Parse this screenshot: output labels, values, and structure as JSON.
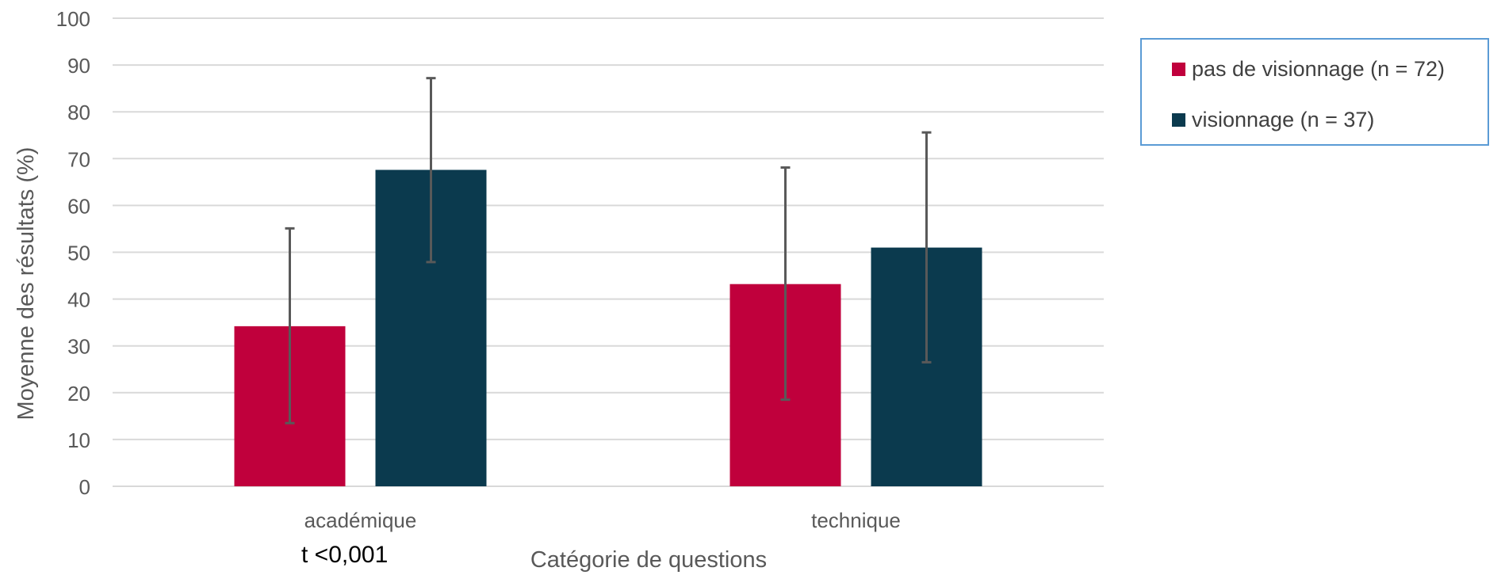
{
  "chart_data": {
    "type": "bar",
    "xlabel": "Catégorie de questions",
    "ylabel": "Moyenne des résultats (%)",
    "ylim": [
      0,
      100
    ],
    "yticks": [
      "0",
      "10",
      "20",
      "30",
      "40",
      "50",
      "60",
      "70",
      "80",
      "90",
      "100"
    ],
    "grid": true,
    "legend_position": "top-right",
    "categories": [
      "académique",
      "technique"
    ],
    "series": [
      {
        "name": "pas de visionnage (n = 72)",
        "color": "#c0003c",
        "values": [
          34.2,
          43.2
        ],
        "error_low": [
          13.5,
          18.5
        ],
        "error_high": [
          55.1,
          68.1
        ]
      },
      {
        "name": "visionnage (n = 37)",
        "color": "#0b3a4e",
        "values": [
          67.6,
          51.0
        ],
        "error_low": [
          47.9,
          26.5
        ],
        "error_high": [
          87.2,
          75.6
        ]
      }
    ],
    "annotation": "t <0,001"
  }
}
